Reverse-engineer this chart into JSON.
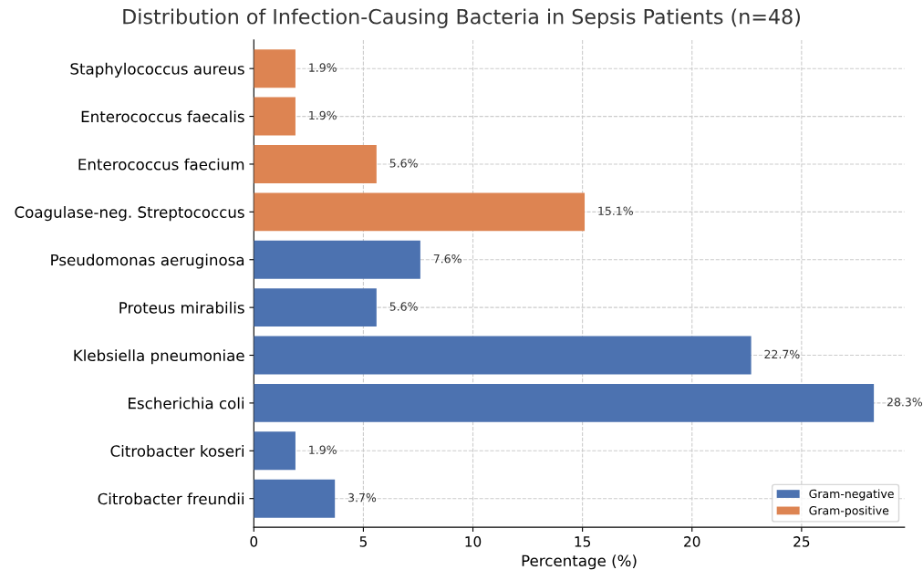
{
  "chart_data": {
    "type": "bar",
    "orientation": "horizontal",
    "title": "Distribution of Infection-Causing Bacteria in Sepsis Patients (n=48)",
    "xlabel": "Percentage (%)",
    "categories": [
      "Staphylococcus aureus",
      "Enterococcus faecalis",
      "Enterococcus faecium",
      "Coagulase-neg. Streptococcus",
      "Pseudomonas aeruginosa",
      "Proteus mirabilis",
      "Klebsiella pneumoniae",
      "Escherichia coli",
      "Citrobacter koseri",
      "Citrobacter freundii"
    ],
    "series": [
      {
        "name": "Gram-negative",
        "color": "#4c72b0",
        "values": [
          null,
          null,
          null,
          null,
          7.6,
          5.6,
          22.7,
          28.3,
          1.9,
          3.7
        ],
        "value_labels": [
          null,
          null,
          null,
          null,
          "7.6%",
          "5.6%",
          "22.7%",
          "28.3%",
          "1.9%",
          "3.7%"
        ]
      },
      {
        "name": "Gram-positive",
        "color": "#dd8452",
        "values": [
          1.9,
          1.9,
          5.6,
          15.1,
          null,
          null,
          null,
          null,
          null,
          null
        ],
        "value_labels": [
          "1.9%",
          "1.9%",
          "5.6%",
          "15.1%",
          null,
          null,
          null,
          null,
          null,
          null
        ]
      }
    ],
    "xlim": [
      0,
      29.7
    ],
    "xticks": [
      0,
      5,
      10,
      15,
      20,
      25
    ],
    "grid": true,
    "legend": "bottom right"
  }
}
